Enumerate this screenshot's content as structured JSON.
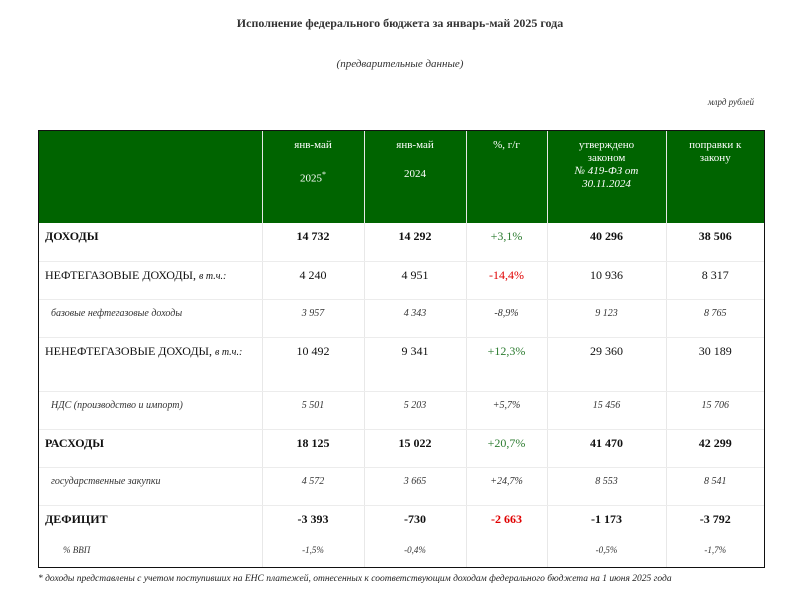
{
  "title": "Исполнение федерального бюджета за январь-май 2025 года",
  "subtitle": "(предварительные данные)",
  "units": "млрд рублей",
  "header": {
    "col1_line1": "янв-май",
    "col1_line2": "2025",
    "col1_mark": "*",
    "col2_line1": "янв-май",
    "col2_line2": "2024",
    "col3": "%, г/г",
    "col4_line1": "утверждено",
    "col4_line2": "законом",
    "col4_line3": "№ 419-ФЗ от",
    "col4_line4": "30.11.2024",
    "col5_line1": "поправки к",
    "col5_line2": "закону"
  },
  "rows": [
    {
      "label": "ДОХОДЫ",
      "note": "",
      "v2025": "14 732",
      "v2024": "14 292",
      "yoy": "+3,1%",
      "law": "40 296",
      "amend": "38 506"
    },
    {
      "label": "НЕФТЕГАЗОВЫЕ ДОХОДЫ,",
      "note": "в т.ч.:",
      "v2025": "4 240",
      "v2024": "4 951",
      "yoy": "-14,4%",
      "law": "10 936",
      "amend": "8 317"
    },
    {
      "label": "базовые нефтегазовые доходы",
      "note": "",
      "v2025": "3 957",
      "v2024": "4 343",
      "yoy": "-8,9%",
      "law": "9 123",
      "amend": "8 765"
    },
    {
      "label": "НЕНЕФТЕГАЗОВЫЕ ДОХОДЫ,",
      "note": "в т.ч.:",
      "v2025": "10 492",
      "v2024": "9 341",
      "yoy": "+12,3%",
      "law": "29 360",
      "amend": "30 189"
    },
    {
      "label": "НДС (производство и импорт)",
      "note": "",
      "v2025": "5 501",
      "v2024": "5 203",
      "yoy": "+5,7%",
      "law": "15 456",
      "amend": "15 706"
    },
    {
      "label": "РАСХОДЫ",
      "note": "",
      "v2025": "18 125",
      "v2024": "15 022",
      "yoy": "+20,7%",
      "law": "41 470",
      "amend": "42 299"
    },
    {
      "label": "государственные закупки",
      "note": "",
      "v2025": "4 572",
      "v2024": "3 665",
      "yoy": "+24,7%",
      "law": "8 553",
      "amend": "8 541"
    },
    {
      "label": "ДЕФИЦИТ",
      "note": "",
      "v2025": "-3 393",
      "v2024": "-730",
      "yoy": "-2 663",
      "law": "-1 173",
      "amend": "-3 792"
    },
    {
      "label": "% ВВП",
      "note": "",
      "v2025": "-1,5%",
      "v2024": "-0,4%",
      "yoy": "",
      "law": "-0,5%",
      "amend": "-1,7%"
    }
  ],
  "colors": {
    "header_bg": "#006400",
    "positive": "#2e7d32",
    "negative": "#e00000"
  },
  "footnote": "* доходы представлены с учетом поступивших на ЕНС платежей, отнесенных к соответствующим доходам федерального бюджета на 1 июня 2025 года"
}
